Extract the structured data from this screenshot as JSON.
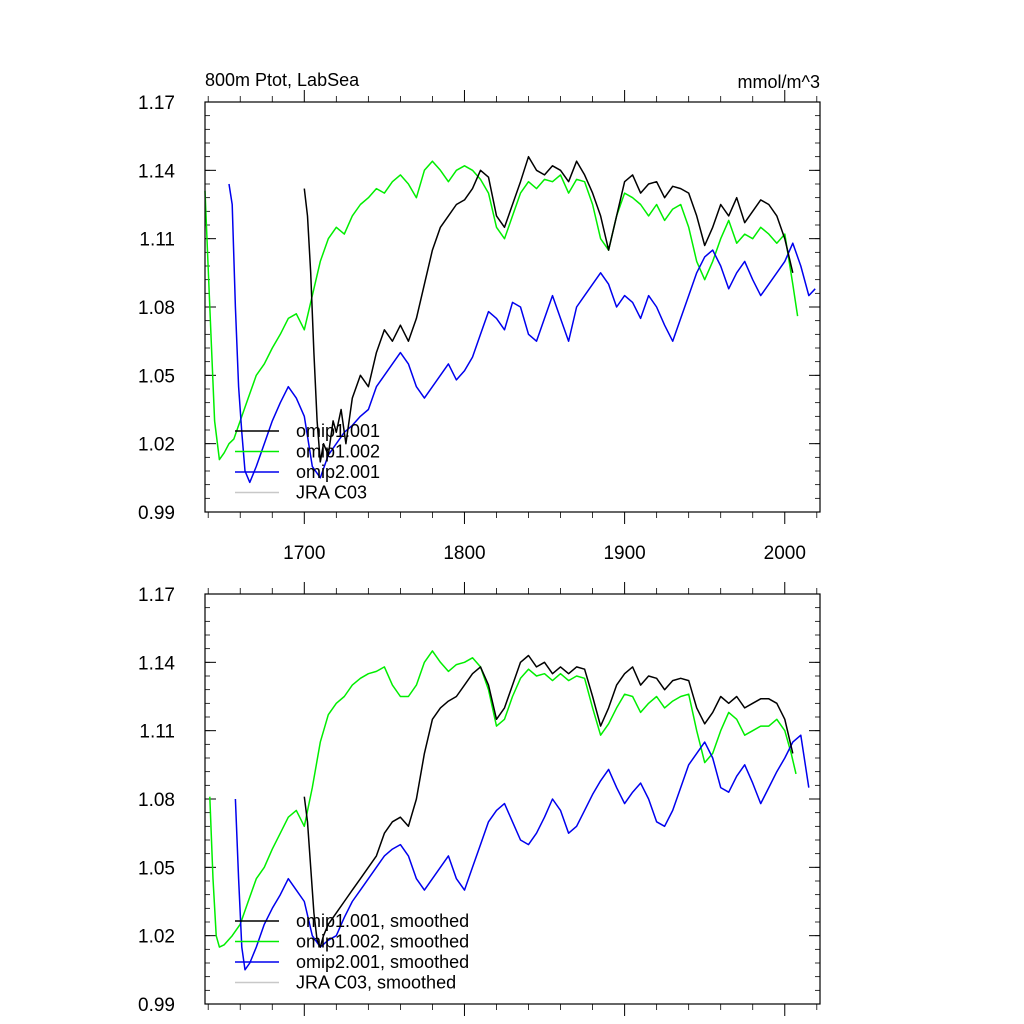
{
  "chart_data": [
    {
      "type": "line",
      "title": "800m Ptot, LabSea",
      "units": "mmol/m^3",
      "xlim": [
        1638,
        2022
      ],
      "ylim": [
        0.99,
        1.17
      ],
      "yticks": [
        "0.99",
        "1.02",
        "1.05",
        "1.08",
        "1.11",
        "1.14",
        "1.17"
      ],
      "xticks": [
        "1700",
        "1800",
        "1900",
        "2000"
      ],
      "legend_position": "bottom-left",
      "series": [
        {
          "name": "omip1.001",
          "color": "#000000",
          "x": [
            1700,
            1702,
            1704,
            1706,
            1708,
            1710,
            1712,
            1715,
            1718,
            1720,
            1723,
            1726,
            1730,
            1735,
            1740,
            1745,
            1750,
            1755,
            1760,
            1765,
            1770,
            1775,
            1780,
            1785,
            1790,
            1795,
            1800,
            1805,
            1810,
            1815,
            1820,
            1825,
            1830,
            1835,
            1840,
            1845,
            1850,
            1855,
            1860,
            1865,
            1870,
            1875,
            1880,
            1885,
            1890,
            1895,
            1900,
            1905,
            1910,
            1915,
            1920,
            1925,
            1930,
            1935,
            1940,
            1945,
            1950,
            1955,
            1960,
            1965,
            1970,
            1975,
            1980,
            1985,
            1990,
            1995,
            2000,
            2005
          ],
          "y": [
            1.132,
            1.12,
            1.095,
            1.06,
            1.03,
            1.012,
            1.02,
            1.015,
            1.03,
            1.025,
            1.035,
            1.02,
            1.04,
            1.05,
            1.045,
            1.06,
            1.07,
            1.065,
            1.072,
            1.065,
            1.075,
            1.09,
            1.105,
            1.115,
            1.12,
            1.125,
            1.127,
            1.132,
            1.14,
            1.137,
            1.12,
            1.115,
            1.125,
            1.135,
            1.146,
            1.14,
            1.138,
            1.142,
            1.14,
            1.135,
            1.144,
            1.138,
            1.13,
            1.12,
            1.105,
            1.12,
            1.135,
            1.138,
            1.13,
            1.134,
            1.135,
            1.128,
            1.133,
            1.132,
            1.13,
            1.12,
            1.107,
            1.115,
            1.125,
            1.12,
            1.128,
            1.117,
            1.122,
            1.127,
            1.125,
            1.12,
            1.11,
            1.095
          ]
        },
        {
          "name": "omip1.002",
          "color": "#00ee00",
          "x": [
            1638,
            1641,
            1644,
            1647,
            1650,
            1653,
            1656,
            1660,
            1665,
            1670,
            1675,
            1680,
            1685,
            1690,
            1695,
            1700,
            1705,
            1710,
            1715,
            1720,
            1725,
            1730,
            1735,
            1740,
            1745,
            1750,
            1755,
            1760,
            1765,
            1770,
            1775,
            1780,
            1785,
            1790,
            1795,
            1800,
            1805,
            1810,
            1815,
            1820,
            1825,
            1830,
            1835,
            1840,
            1845,
            1850,
            1855,
            1860,
            1865,
            1870,
            1875,
            1880,
            1885,
            1890,
            1895,
            1900,
            1905,
            1910,
            1915,
            1920,
            1925,
            1930,
            1935,
            1940,
            1945,
            1950,
            1955,
            1960,
            1965,
            1970,
            1975,
            1980,
            1985,
            1990,
            1995,
            2000,
            2005,
            2008
          ],
          "y": [
            1.131,
            1.08,
            1.03,
            1.013,
            1.016,
            1.02,
            1.022,
            1.03,
            1.04,
            1.05,
            1.055,
            1.062,
            1.068,
            1.075,
            1.077,
            1.07,
            1.085,
            1.1,
            1.11,
            1.115,
            1.112,
            1.12,
            1.125,
            1.128,
            1.132,
            1.13,
            1.135,
            1.138,
            1.134,
            1.128,
            1.14,
            1.144,
            1.14,
            1.135,
            1.14,
            1.142,
            1.14,
            1.136,
            1.13,
            1.115,
            1.11,
            1.12,
            1.13,
            1.135,
            1.132,
            1.136,
            1.135,
            1.138,
            1.13,
            1.136,
            1.135,
            1.125,
            1.11,
            1.105,
            1.12,
            1.13,
            1.128,
            1.125,
            1.12,
            1.125,
            1.118,
            1.123,
            1.125,
            1.115,
            1.1,
            1.092,
            1.1,
            1.11,
            1.118,
            1.108,
            1.112,
            1.11,
            1.115,
            1.112,
            1.108,
            1.112,
            1.09,
            1.076
          ]
        },
        {
          "name": "omip2.001",
          "color": "#0000ee",
          "x": [
            1653,
            1655,
            1657,
            1659,
            1661,
            1663,
            1666,
            1670,
            1675,
            1680,
            1685,
            1690,
            1695,
            1700,
            1705,
            1710,
            1715,
            1720,
            1725,
            1730,
            1735,
            1740,
            1745,
            1750,
            1755,
            1760,
            1765,
            1770,
            1775,
            1780,
            1785,
            1790,
            1795,
            1800,
            1805,
            1810,
            1815,
            1820,
            1825,
            1830,
            1835,
            1840,
            1845,
            1850,
            1855,
            1860,
            1865,
            1870,
            1875,
            1880,
            1885,
            1890,
            1895,
            1900,
            1905,
            1910,
            1915,
            1920,
            1925,
            1930,
            1935,
            1940,
            1945,
            1950,
            1955,
            1960,
            1965,
            1970,
            1975,
            1980,
            1985,
            1990,
            1995,
            2000,
            2005,
            2010,
            2015,
            2019
          ],
          "y": [
            1.134,
            1.125,
            1.08,
            1.045,
            1.025,
            1.008,
            1.003,
            1.01,
            1.02,
            1.03,
            1.038,
            1.045,
            1.04,
            1.032,
            1.01,
            1.005,
            1.015,
            1.02,
            1.025,
            1.028,
            1.032,
            1.035,
            1.045,
            1.05,
            1.055,
            1.06,
            1.055,
            1.045,
            1.04,
            1.045,
            1.05,
            1.055,
            1.048,
            1.052,
            1.058,
            1.068,
            1.078,
            1.075,
            1.07,
            1.082,
            1.08,
            1.068,
            1.065,
            1.075,
            1.085,
            1.075,
            1.065,
            1.08,
            1.085,
            1.09,
            1.095,
            1.09,
            1.08,
            1.085,
            1.082,
            1.075,
            1.085,
            1.08,
            1.072,
            1.065,
            1.075,
            1.085,
            1.095,
            1.102,
            1.105,
            1.098,
            1.088,
            1.095,
            1.1,
            1.092,
            1.085,
            1.09,
            1.095,
            1.1,
            1.108,
            1.098,
            1.085,
            1.088
          ]
        }
      ],
      "legend": [
        "omip1.001",
        "omip1.002",
        "omip2.001",
        "JRA C03"
      ]
    },
    {
      "type": "line",
      "title": "",
      "xlim": [
        1638,
        2022
      ],
      "ylim": [
        0.99,
        1.17
      ],
      "yticks": [
        "0.99",
        "1.02",
        "1.05",
        "1.08",
        "1.11",
        "1.14",
        "1.17"
      ],
      "legend_position": "bottom-left",
      "series": [
        {
          "name": "omip1.001, smoothed",
          "color": "#000000",
          "x": [
            1700,
            1702,
            1704,
            1706,
            1708,
            1710,
            1712,
            1715,
            1720,
            1725,
            1730,
            1735,
            1740,
            1745,
            1750,
            1755,
            1760,
            1765,
            1770,
            1775,
            1780,
            1785,
            1790,
            1795,
            1800,
            1805,
            1810,
            1815,
            1820,
            1825,
            1830,
            1835,
            1840,
            1845,
            1850,
            1855,
            1860,
            1865,
            1870,
            1875,
            1880,
            1885,
            1890,
            1895,
            1900,
            1905,
            1910,
            1915,
            1920,
            1925,
            1930,
            1935,
            1940,
            1945,
            1950,
            1955,
            1960,
            1965,
            1970,
            1975,
            1980,
            1985,
            1990,
            1995,
            2000,
            2005
          ],
          "y": [
            1.081,
            1.07,
            1.05,
            1.03,
            1.018,
            1.015,
            1.02,
            1.025,
            1.03,
            1.035,
            1.04,
            1.045,
            1.05,
            1.055,
            1.065,
            1.07,
            1.072,
            1.068,
            1.08,
            1.1,
            1.115,
            1.12,
            1.123,
            1.125,
            1.13,
            1.135,
            1.138,
            1.13,
            1.115,
            1.12,
            1.13,
            1.14,
            1.143,
            1.138,
            1.14,
            1.135,
            1.138,
            1.135,
            1.138,
            1.137,
            1.125,
            1.112,
            1.12,
            1.13,
            1.135,
            1.138,
            1.13,
            1.134,
            1.133,
            1.128,
            1.132,
            1.133,
            1.132,
            1.12,
            1.113,
            1.118,
            1.125,
            1.122,
            1.125,
            1.12,
            1.122,
            1.124,
            1.124,
            1.122,
            1.115,
            1.1
          ]
        },
        {
          "name": "omip1.002, smoothed",
          "color": "#00ee00",
          "x": [
            1641,
            1643,
            1645,
            1647,
            1650,
            1655,
            1660,
            1665,
            1670,
            1675,
            1680,
            1685,
            1690,
            1695,
            1700,
            1705,
            1710,
            1715,
            1720,
            1725,
            1730,
            1735,
            1740,
            1745,
            1750,
            1755,
            1760,
            1765,
            1770,
            1775,
            1780,
            1785,
            1790,
            1795,
            1800,
            1805,
            1810,
            1815,
            1820,
            1825,
            1830,
            1835,
            1840,
            1845,
            1850,
            1855,
            1860,
            1865,
            1870,
            1875,
            1880,
            1885,
            1890,
            1895,
            1900,
            1905,
            1910,
            1915,
            1920,
            1925,
            1930,
            1935,
            1940,
            1945,
            1950,
            1955,
            1960,
            1965,
            1970,
            1975,
            1980,
            1985,
            1990,
            1995,
            2000,
            2004,
            2007
          ],
          "y": [
            1.081,
            1.045,
            1.02,
            1.015,
            1.016,
            1.02,
            1.025,
            1.035,
            1.045,
            1.05,
            1.058,
            1.065,
            1.072,
            1.075,
            1.068,
            1.085,
            1.105,
            1.117,
            1.122,
            1.125,
            1.13,
            1.133,
            1.135,
            1.136,
            1.138,
            1.13,
            1.125,
            1.125,
            1.13,
            1.14,
            1.145,
            1.14,
            1.136,
            1.139,
            1.14,
            1.142,
            1.138,
            1.128,
            1.112,
            1.115,
            1.125,
            1.133,
            1.137,
            1.134,
            1.135,
            1.132,
            1.135,
            1.132,
            1.134,
            1.133,
            1.12,
            1.108,
            1.113,
            1.12,
            1.126,
            1.125,
            1.118,
            1.122,
            1.125,
            1.12,
            1.123,
            1.125,
            1.126,
            1.11,
            1.096,
            1.1,
            1.11,
            1.118,
            1.115,
            1.108,
            1.11,
            1.112,
            1.112,
            1.115,
            1.11,
            1.1,
            1.091
          ]
        },
        {
          "name": "omip2.001, smoothed",
          "color": "#0000ee",
          "x": [
            1657,
            1659,
            1661,
            1663,
            1666,
            1670,
            1675,
            1680,
            1685,
            1690,
            1695,
            1700,
            1705,
            1710,
            1715,
            1720,
            1725,
            1730,
            1735,
            1740,
            1745,
            1750,
            1755,
            1760,
            1765,
            1770,
            1775,
            1780,
            1785,
            1790,
            1795,
            1800,
            1805,
            1810,
            1815,
            1820,
            1825,
            1830,
            1835,
            1840,
            1845,
            1850,
            1855,
            1860,
            1865,
            1870,
            1875,
            1880,
            1885,
            1890,
            1895,
            1900,
            1905,
            1910,
            1915,
            1920,
            1925,
            1930,
            1935,
            1940,
            1945,
            1950,
            1955,
            1960,
            1965,
            1970,
            1975,
            1980,
            1985,
            1990,
            1995,
            2000,
            2005,
            2010,
            2015
          ],
          "y": [
            1.08,
            1.045,
            1.015,
            1.005,
            1.008,
            1.015,
            1.025,
            1.032,
            1.038,
            1.045,
            1.04,
            1.035,
            1.02,
            1.015,
            1.018,
            1.02,
            1.028,
            1.035,
            1.04,
            1.045,
            1.05,
            1.055,
            1.058,
            1.06,
            1.055,
            1.045,
            1.04,
            1.045,
            1.05,
            1.055,
            1.045,
            1.04,
            1.05,
            1.06,
            1.07,
            1.075,
            1.078,
            1.07,
            1.062,
            1.06,
            1.065,
            1.072,
            1.08,
            1.075,
            1.065,
            1.068,
            1.075,
            1.082,
            1.088,
            1.093,
            1.085,
            1.078,
            1.083,
            1.087,
            1.08,
            1.07,
            1.068,
            1.075,
            1.085,
            1.095,
            1.1,
            1.105,
            1.098,
            1.085,
            1.083,
            1.09,
            1.095,
            1.087,
            1.078,
            1.085,
            1.092,
            1.098,
            1.105,
            1.108,
            1.085
          ]
        }
      ],
      "legend": [
        "omip1.001, smoothed",
        "omip1.002, smoothed",
        "omip2.001, smoothed",
        "JRA C03, smoothed"
      ]
    }
  ]
}
